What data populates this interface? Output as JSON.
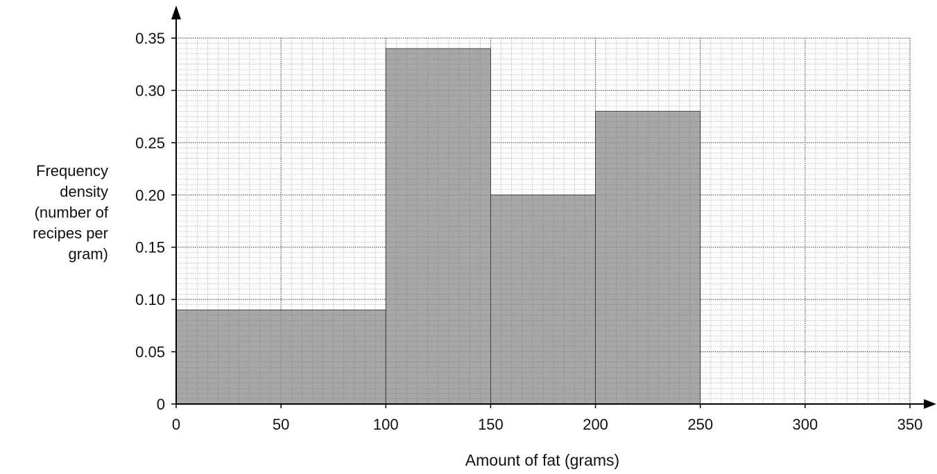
{
  "chart_data": {
    "type": "bar",
    "histogram": true,
    "xlabel": "Amount of fat (grams)",
    "ylabel_lines": [
      "Frequency",
      "density",
      "(number of",
      "recipes per",
      "gram)"
    ],
    "xlim": [
      0,
      350
    ],
    "ylim": [
      0,
      0.35
    ],
    "x_ticks": [
      0,
      50,
      100,
      150,
      200,
      250,
      300,
      350
    ],
    "x_tick_labels": [
      "0",
      "50",
      "100",
      "150",
      "200",
      "250",
      "300",
      "350"
    ],
    "y_ticks": [
      0,
      0.05,
      0.1,
      0.15,
      0.2,
      0.25,
      0.3,
      0.35
    ],
    "y_tick_labels": [
      "0",
      "0.05",
      "0.10",
      "0.15",
      "0.20",
      "0.25",
      "0.30",
      "0.35"
    ],
    "bins": [
      {
        "x0": 0,
        "x1": 100,
        "value": 0.09
      },
      {
        "x0": 100,
        "x1": 150,
        "value": 0.34
      },
      {
        "x0": 150,
        "x1": 200,
        "value": 0.2
      },
      {
        "x0": 200,
        "x1": 250,
        "value": 0.28
      }
    ],
    "grid": true,
    "bar_color": "#a0a0a0"
  }
}
